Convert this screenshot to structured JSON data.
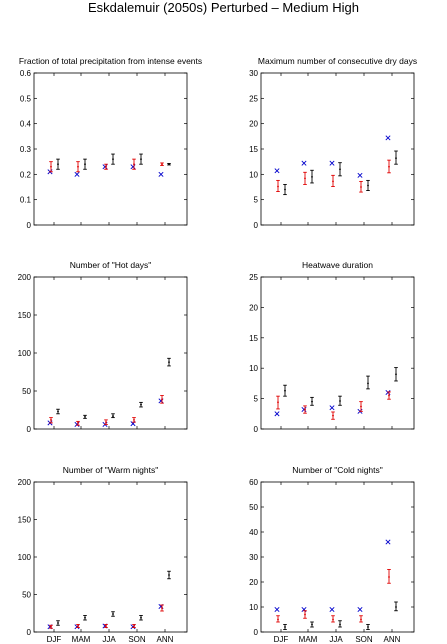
{
  "title": "Eskdalemuir (2050s) Perturbed – Medium High",
  "colors": {
    "red": "#e00000",
    "blue": "#0000cc",
    "black": "#000000"
  },
  "chart_data": [
    {
      "type": "scatter",
      "title": "Fraction of total precipitation from intense events",
      "categories": [
        "DJF",
        "MAM",
        "JJA",
        "SON",
        "ANN"
      ],
      "ylim": [
        0,
        0.6
      ],
      "yticks": [
        "0",
        "0.1",
        "0.2",
        "0.3",
        "0.4",
        "0.5",
        "0.6"
      ],
      "show_xticklabels": false,
      "series": [
        {
          "marker": "x",
          "color": "blue",
          "values": [
            0.21,
            0.2,
            0.23,
            0.23,
            0.2
          ]
        },
        {
          "marker": "range",
          "color": "red",
          "values": [
            0.23,
            0.23,
            0.23,
            0.24,
            0.24
          ],
          "low": [
            0.21,
            0.21,
            0.22,
            0.22,
            0.235
          ],
          "high": [
            0.25,
            0.25,
            0.24,
            0.26,
            0.245
          ]
        },
        {
          "marker": "range",
          "color": "black",
          "values": [
            0.24,
            0.24,
            0.26,
            0.26,
            0.24
          ],
          "low": [
            0.22,
            0.22,
            0.24,
            0.24,
            0.237
          ],
          "high": [
            0.26,
            0.26,
            0.28,
            0.28,
            0.243
          ]
        }
      ]
    },
    {
      "type": "scatter",
      "title": "Maximum number of consecutive dry days",
      "categories": [
        "DJF",
        "MAM",
        "JJA",
        "SON",
        "ANN"
      ],
      "ylim": [
        0,
        30
      ],
      "yticks": [
        "0",
        "5",
        "10",
        "15",
        "20",
        "25",
        "30"
      ],
      "show_xticklabels": false,
      "series": [
        {
          "marker": "x",
          "color": "blue",
          "values": [
            10.7,
            12.2,
            12.2,
            9.8,
            17.2
          ]
        },
        {
          "marker": "range",
          "color": "red",
          "values": [
            7.6,
            9.2,
            8.6,
            7.5,
            11.5
          ],
          "low": [
            6.6,
            8.0,
            7.6,
            6.5,
            10.3
          ],
          "high": [
            8.8,
            10.4,
            9.8,
            8.6,
            12.8
          ]
        },
        {
          "marker": "range",
          "color": "black",
          "values": [
            7.0,
            9.5,
            11.0,
            7.8,
            13.2
          ],
          "low": [
            6.0,
            8.3,
            9.7,
            6.8,
            12.0
          ],
          "high": [
            8.0,
            10.8,
            12.3,
            8.8,
            14.6
          ]
        }
      ]
    },
    {
      "type": "scatter",
      "title": "Number of \"Hot days\"",
      "categories": [
        "DJF",
        "MAM",
        "JJA",
        "SON",
        "ANN"
      ],
      "ylim": [
        0,
        200
      ],
      "yticks": [
        "0",
        "50",
        "100",
        "150",
        "200"
      ],
      "show_xticklabels": false,
      "series": [
        {
          "marker": "x",
          "color": "blue",
          "values": [
            8,
            6,
            6,
            7,
            37
          ]
        },
        {
          "marker": "range",
          "color": "red",
          "values": [
            12,
            8,
            9,
            12,
            39
          ],
          "low": [
            8,
            5,
            6,
            9,
            34
          ],
          "high": [
            15,
            10,
            12,
            15,
            44
          ]
        },
        {
          "marker": "range",
          "color": "black",
          "values": [
            23,
            16,
            17,
            32,
            88
          ],
          "low": [
            20,
            14,
            15,
            29,
            83
          ],
          "high": [
            26,
            18,
            20,
            35,
            93
          ]
        }
      ]
    },
    {
      "type": "scatter",
      "title": "Heatwave duration",
      "categories": [
        "DJF",
        "MAM",
        "JJA",
        "SON",
        "ANN"
      ],
      "ylim": [
        0,
        25
      ],
      "yticks": [
        "0",
        "5",
        "10",
        "15",
        "20",
        "25"
      ],
      "show_xticklabels": false,
      "series": [
        {
          "marker": "x",
          "color": "blue",
          "values": [
            2.5,
            3.2,
            3.5,
            2.9,
            6.0
          ]
        },
        {
          "marker": "range",
          "color": "red",
          "values": [
            4.4,
            3.2,
            2.2,
            3.7,
            5.5
          ],
          "low": [
            3.3,
            2.6,
            1.6,
            2.9,
            4.9
          ],
          "high": [
            5.4,
            3.8,
            2.8,
            4.5,
            6.1
          ]
        },
        {
          "marker": "range",
          "color": "black",
          "values": [
            6.3,
            4.5,
            4.6,
            7.5,
            9.0
          ],
          "low": [
            5.4,
            3.9,
            3.9,
            6.6,
            7.9
          ],
          "high": [
            7.2,
            5.2,
            5.4,
            8.7,
            10.1
          ]
        }
      ]
    },
    {
      "type": "scatter",
      "title": "Number of \"Warm nights\"",
      "categories": [
        "DJF",
        "MAM",
        "JJA",
        "SON",
        "ANN"
      ],
      "ylim": [
        0,
        200
      ],
      "yticks": [
        "0",
        "50",
        "100",
        "150",
        "200"
      ],
      "show_xticklabels": true,
      "series": [
        {
          "marker": "x",
          "color": "blue",
          "values": [
            7,
            7,
            8,
            7,
            34
          ]
        },
        {
          "marker": "range",
          "color": "red",
          "values": [
            7,
            8,
            8,
            8,
            32
          ],
          "low": [
            5,
            6,
            6,
            6,
            28
          ],
          "high": [
            9,
            10,
            10,
            10,
            36
          ]
        },
        {
          "marker": "range",
          "color": "black",
          "values": [
            12,
            19,
            24,
            19,
            76
          ],
          "low": [
            9,
            16,
            21,
            16,
            71
          ],
          "high": [
            15,
            22,
            27,
            22,
            81
          ]
        }
      ]
    },
    {
      "type": "scatter",
      "title": "Number of \"Cold nights\"",
      "categories": [
        "DJF",
        "MAM",
        "JJA",
        "SON",
        "ANN"
      ],
      "ylim": [
        0,
        60
      ],
      "yticks": [
        "0",
        "10",
        "20",
        "30",
        "40",
        "50",
        "60"
      ],
      "show_xticklabels": true,
      "series": [
        {
          "marker": "x",
          "color": "blue",
          "values": [
            9,
            9,
            9,
            9,
            36
          ]
        },
        {
          "marker": "range",
          "color": "red",
          "values": [
            5,
            7,
            5,
            5,
            22
          ],
          "low": [
            4,
            5.5,
            4,
            4,
            19.5
          ],
          "high": [
            6.5,
            8.5,
            6.5,
            6.5,
            25
          ]
        },
        {
          "marker": "range",
          "color": "black",
          "values": [
            2,
            3,
            3,
            2,
            10
          ],
          "low": [
            1,
            2,
            2,
            1,
            8.5
          ],
          "high": [
            3,
            4,
            4.5,
            3,
            12
          ]
        }
      ]
    }
  ]
}
